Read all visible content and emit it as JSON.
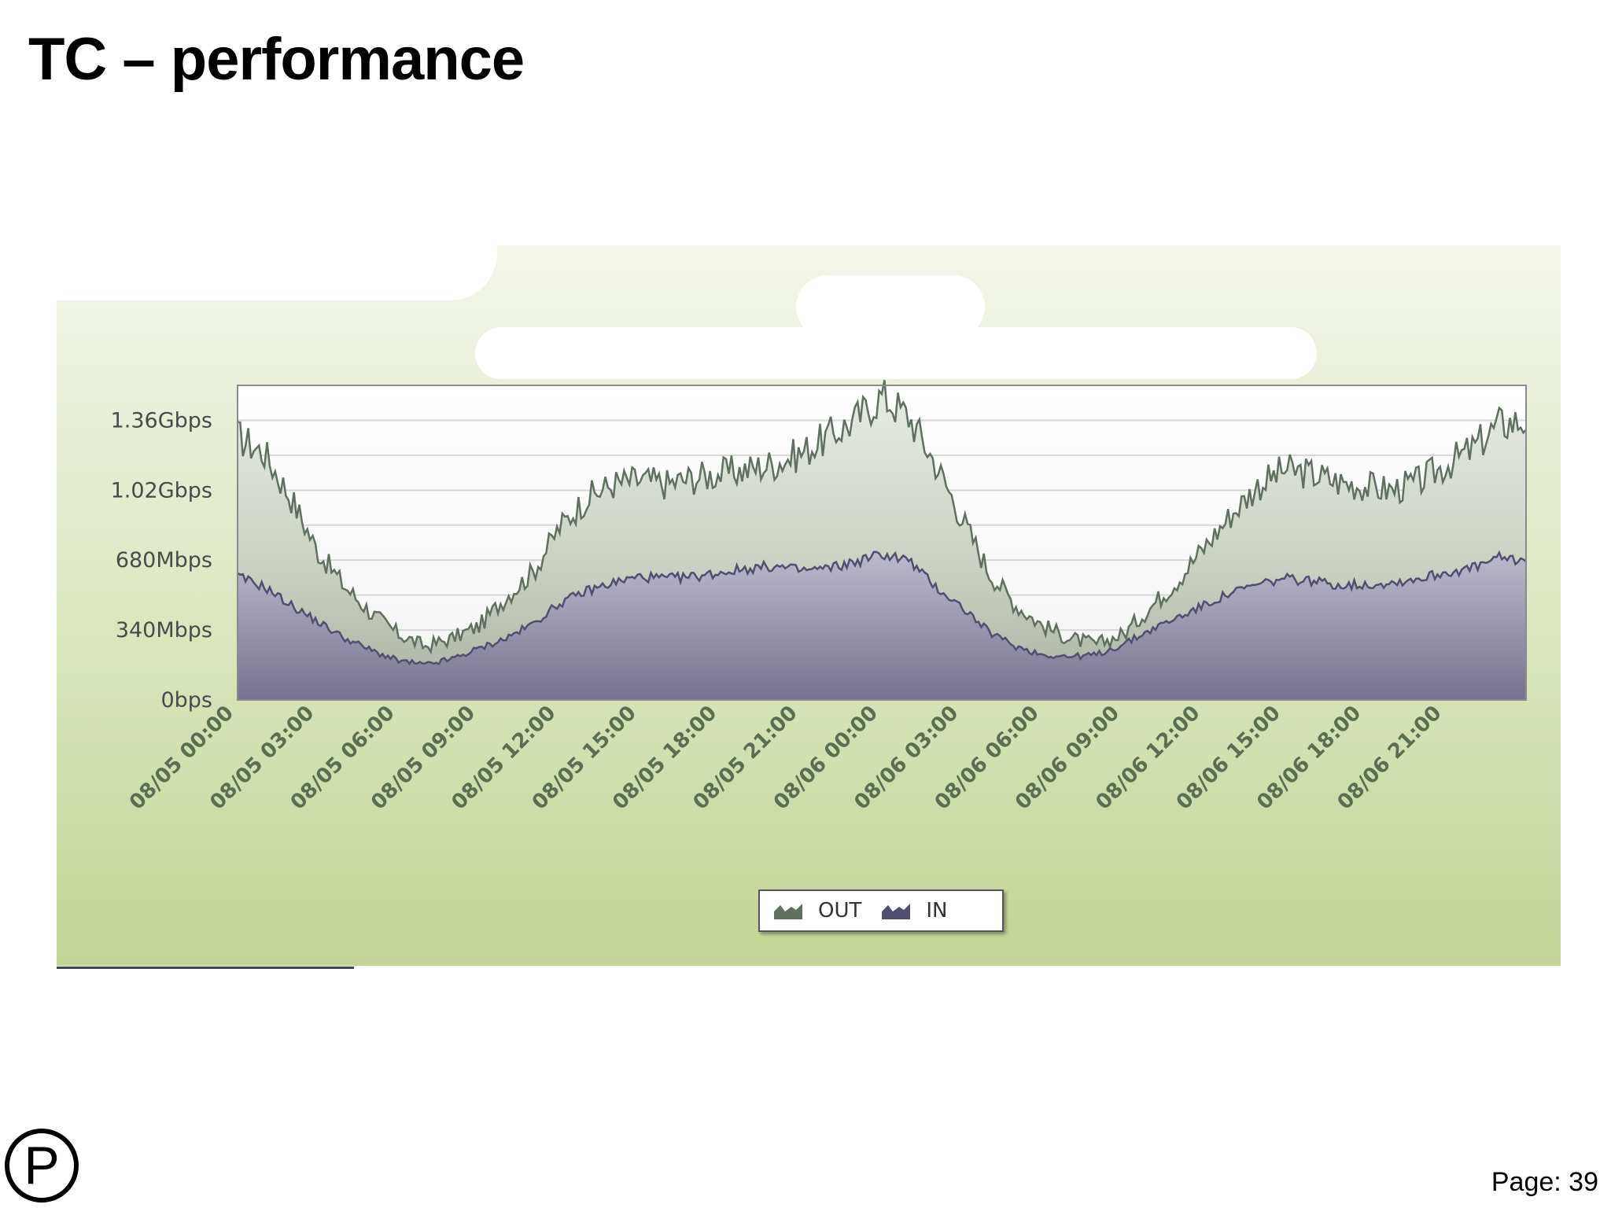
{
  "slide": {
    "title": "TC – performance",
    "page_number": "Page: 39",
    "logo_letter": "P"
  },
  "colors": {
    "out_series": "#5f6f60",
    "in_series": "#514f70",
    "panel_top": "#f3f6ea",
    "panel_bottom": "#c3d495"
  },
  "chart_data": {
    "type": "area",
    "title": "",
    "xlabel": "",
    "ylabel": "",
    "ylim": [
      0,
      1.53
    ],
    "y_unit": "Gbps",
    "yticks": [
      {
        "value": 0,
        "label": "0bps"
      },
      {
        "value": 0.34,
        "label": "340Mbps"
      },
      {
        "value": 0.68,
        "label": "680Mbps"
      },
      {
        "value": 1.02,
        "label": "1.02Gbps"
      },
      {
        "value": 1.36,
        "label": "1.36Gbps"
      }
    ],
    "x_unit": "hours since 08/05 00:00",
    "xlim": [
      0,
      48
    ],
    "xticks": [
      {
        "value": 0,
        "label": "08/05 00:00"
      },
      {
        "value": 3,
        "label": "08/05 03:00"
      },
      {
        "value": 6,
        "label": "08/05 06:00"
      },
      {
        "value": 9,
        "label": "08/05 09:00"
      },
      {
        "value": 12,
        "label": "08/05 12:00"
      },
      {
        "value": 15,
        "label": "08/05 15:00"
      },
      {
        "value": 18,
        "label": "08/05 18:00"
      },
      {
        "value": 21,
        "label": "08/05 21:00"
      },
      {
        "value": 24,
        "label": "08/06 00:00"
      },
      {
        "value": 27,
        "label": "08/06 03:00"
      },
      {
        "value": 30,
        "label": "08/06 06:00"
      },
      {
        "value": 33,
        "label": "08/06 09:00"
      },
      {
        "value": 36,
        "label": "08/06 12:00"
      },
      {
        "value": 39,
        "label": "08/06 15:00"
      },
      {
        "value": 42,
        "label": "08/06 18:00"
      },
      {
        "value": 45,
        "label": "08/06 21:00"
      }
    ],
    "x": [
      0,
      1,
      2,
      3,
      4,
      5,
      6,
      7,
      8,
      9,
      10,
      11,
      12,
      13,
      14,
      15,
      16,
      17,
      18,
      19,
      20,
      21,
      22,
      23,
      24,
      25,
      26,
      27,
      28,
      29,
      30,
      31,
      32,
      33,
      34,
      35,
      36,
      37,
      38,
      39,
      40,
      41,
      42,
      43,
      44,
      45,
      46,
      47,
      48
    ],
    "series": [
      {
        "name": "OUT",
        "values": [
          1.28,
          1.2,
          0.98,
          0.72,
          0.55,
          0.42,
          0.32,
          0.26,
          0.3,
          0.36,
          0.5,
          0.62,
          0.84,
          0.98,
          1.05,
          1.07,
          1.05,
          1.08,
          1.1,
          1.12,
          1.15,
          1.2,
          1.28,
          1.36,
          1.48,
          1.38,
          1.15,
          0.88,
          0.62,
          0.46,
          0.36,
          0.3,
          0.27,
          0.32,
          0.45,
          0.58,
          0.74,
          0.9,
          1.04,
          1.12,
          1.1,
          1.06,
          1.04,
          1.02,
          1.06,
          1.14,
          1.22,
          1.34,
          1.36
        ]
      },
      {
        "name": "IN",
        "values": [
          0.6,
          0.55,
          0.46,
          0.38,
          0.3,
          0.24,
          0.19,
          0.17,
          0.2,
          0.25,
          0.3,
          0.37,
          0.47,
          0.53,
          0.57,
          0.6,
          0.59,
          0.6,
          0.62,
          0.64,
          0.65,
          0.63,
          0.64,
          0.67,
          0.71,
          0.68,
          0.55,
          0.45,
          0.33,
          0.26,
          0.22,
          0.21,
          0.22,
          0.27,
          0.34,
          0.4,
          0.46,
          0.52,
          0.56,
          0.59,
          0.58,
          0.56,
          0.56,
          0.57,
          0.59,
          0.62,
          0.64,
          0.69,
          0.68
        ]
      }
    ],
    "legend": [
      "OUT",
      "IN"
    ],
    "legend_position": "bottom-center",
    "grid": true
  }
}
